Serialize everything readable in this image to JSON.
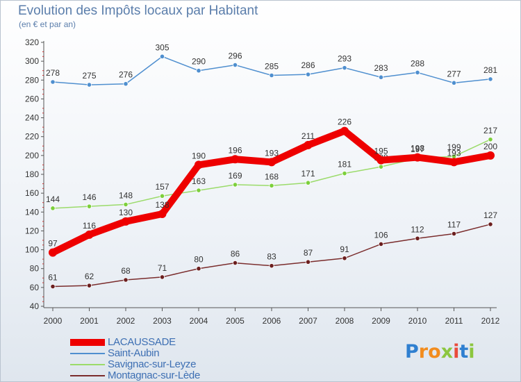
{
  "header": {
    "title": "Evolution des Impôts locaux par Habitant",
    "subtitle": "(en € et par an)"
  },
  "logo": {
    "letters": [
      {
        "ch": "P",
        "color": "#2f7fd0"
      },
      {
        "ch": "r",
        "color": "#f28c1e"
      },
      {
        "ch": "o",
        "color": "#f28c1e"
      },
      {
        "ch": "x",
        "color": "#8cc63f"
      },
      {
        "ch": "i",
        "color": "#e94b3c"
      },
      {
        "ch": "t",
        "color": "#2f7fd0"
      },
      {
        "ch": "i",
        "color": "#8cc63f"
      }
    ]
  },
  "chart_data": {
    "type": "line",
    "title": "Evolution des Impôts locaux par Habitant",
    "subtitle": "(en € et par an)",
    "x": [
      "2000",
      "2001",
      "2002",
      "2003",
      "2004",
      "2005",
      "2006",
      "2007",
      "2008",
      "2009",
      "2010",
      "2011",
      "2012"
    ],
    "ylim": [
      40,
      320
    ],
    "yticks": [
      40,
      60,
      80,
      100,
      120,
      140,
      160,
      180,
      200,
      220,
      240,
      260,
      280,
      300,
      320
    ],
    "grid": false,
    "legend_position": "bottom-left",
    "series": [
      {
        "name": "Saint-Aubin",
        "color": "#4f8fcf",
        "point_color": "#4f8fcf",
        "weight": "thin",
        "values": [
          278,
          275,
          276,
          305,
          290,
          296,
          285,
          286,
          293,
          283,
          288,
          277,
          281
        ]
      },
      {
        "name": "Savignac-sur-Leyze",
        "color": "#9bdb6a",
        "point_color": "#7ccf3b",
        "weight": "thin",
        "values": [
          144,
          146,
          148,
          157,
          163,
          169,
          168,
          171,
          181,
          188,
          197,
          199,
          217
        ]
      },
      {
        "name": "Montagnac-sur-Lède",
        "color": "#7a2c2c",
        "point_color": "#6b1f1f",
        "weight": "thin",
        "values": [
          61,
          62,
          68,
          71,
          80,
          86,
          83,
          87,
          91,
          106,
          112,
          117,
          127
        ]
      },
      {
        "name": "LACAUSSADE",
        "color": "#ee0000",
        "point_color": "#ee0000",
        "weight": "thick",
        "values": [
          97,
          116,
          130,
          138,
          190,
          196,
          193,
          211,
          226,
          195,
          198,
          193,
          200
        ]
      }
    ],
    "data_labels": [
      {
        "series": "Saint-Aubin",
        "labels": [
          "278",
          "275",
          "276",
          "305",
          "290",
          "296",
          "285",
          "286",
          "293",
          "283",
          "288",
          "277",
          "281"
        ]
      },
      {
        "series": "Savignac-sur-Leyze",
        "labels": [
          "144",
          "146",
          "148",
          "157",
          "163",
          "169",
          "168",
          "171",
          "181",
          "188",
          "197",
          "199",
          "217"
        ]
      },
      {
        "series": "Montagnac-sur-Lède",
        "labels": [
          "61",
          "62",
          "68",
          "71",
          "80",
          "86",
          "83",
          "87",
          "91",
          "106",
          "112",
          "117",
          "127"
        ]
      },
      {
        "series": "LACAUSSADE",
        "labels": [
          "97",
          "116",
          "130",
          "138",
          "190",
          "196",
          "193",
          "211",
          "226",
          "195",
          "198",
          "193",
          "200"
        ]
      }
    ],
    "legend": [
      "LACAUSSADE",
      "Saint-Aubin",
      "Savignac-sur-Leyze",
      "Montagnac-sur-Lède"
    ]
  }
}
